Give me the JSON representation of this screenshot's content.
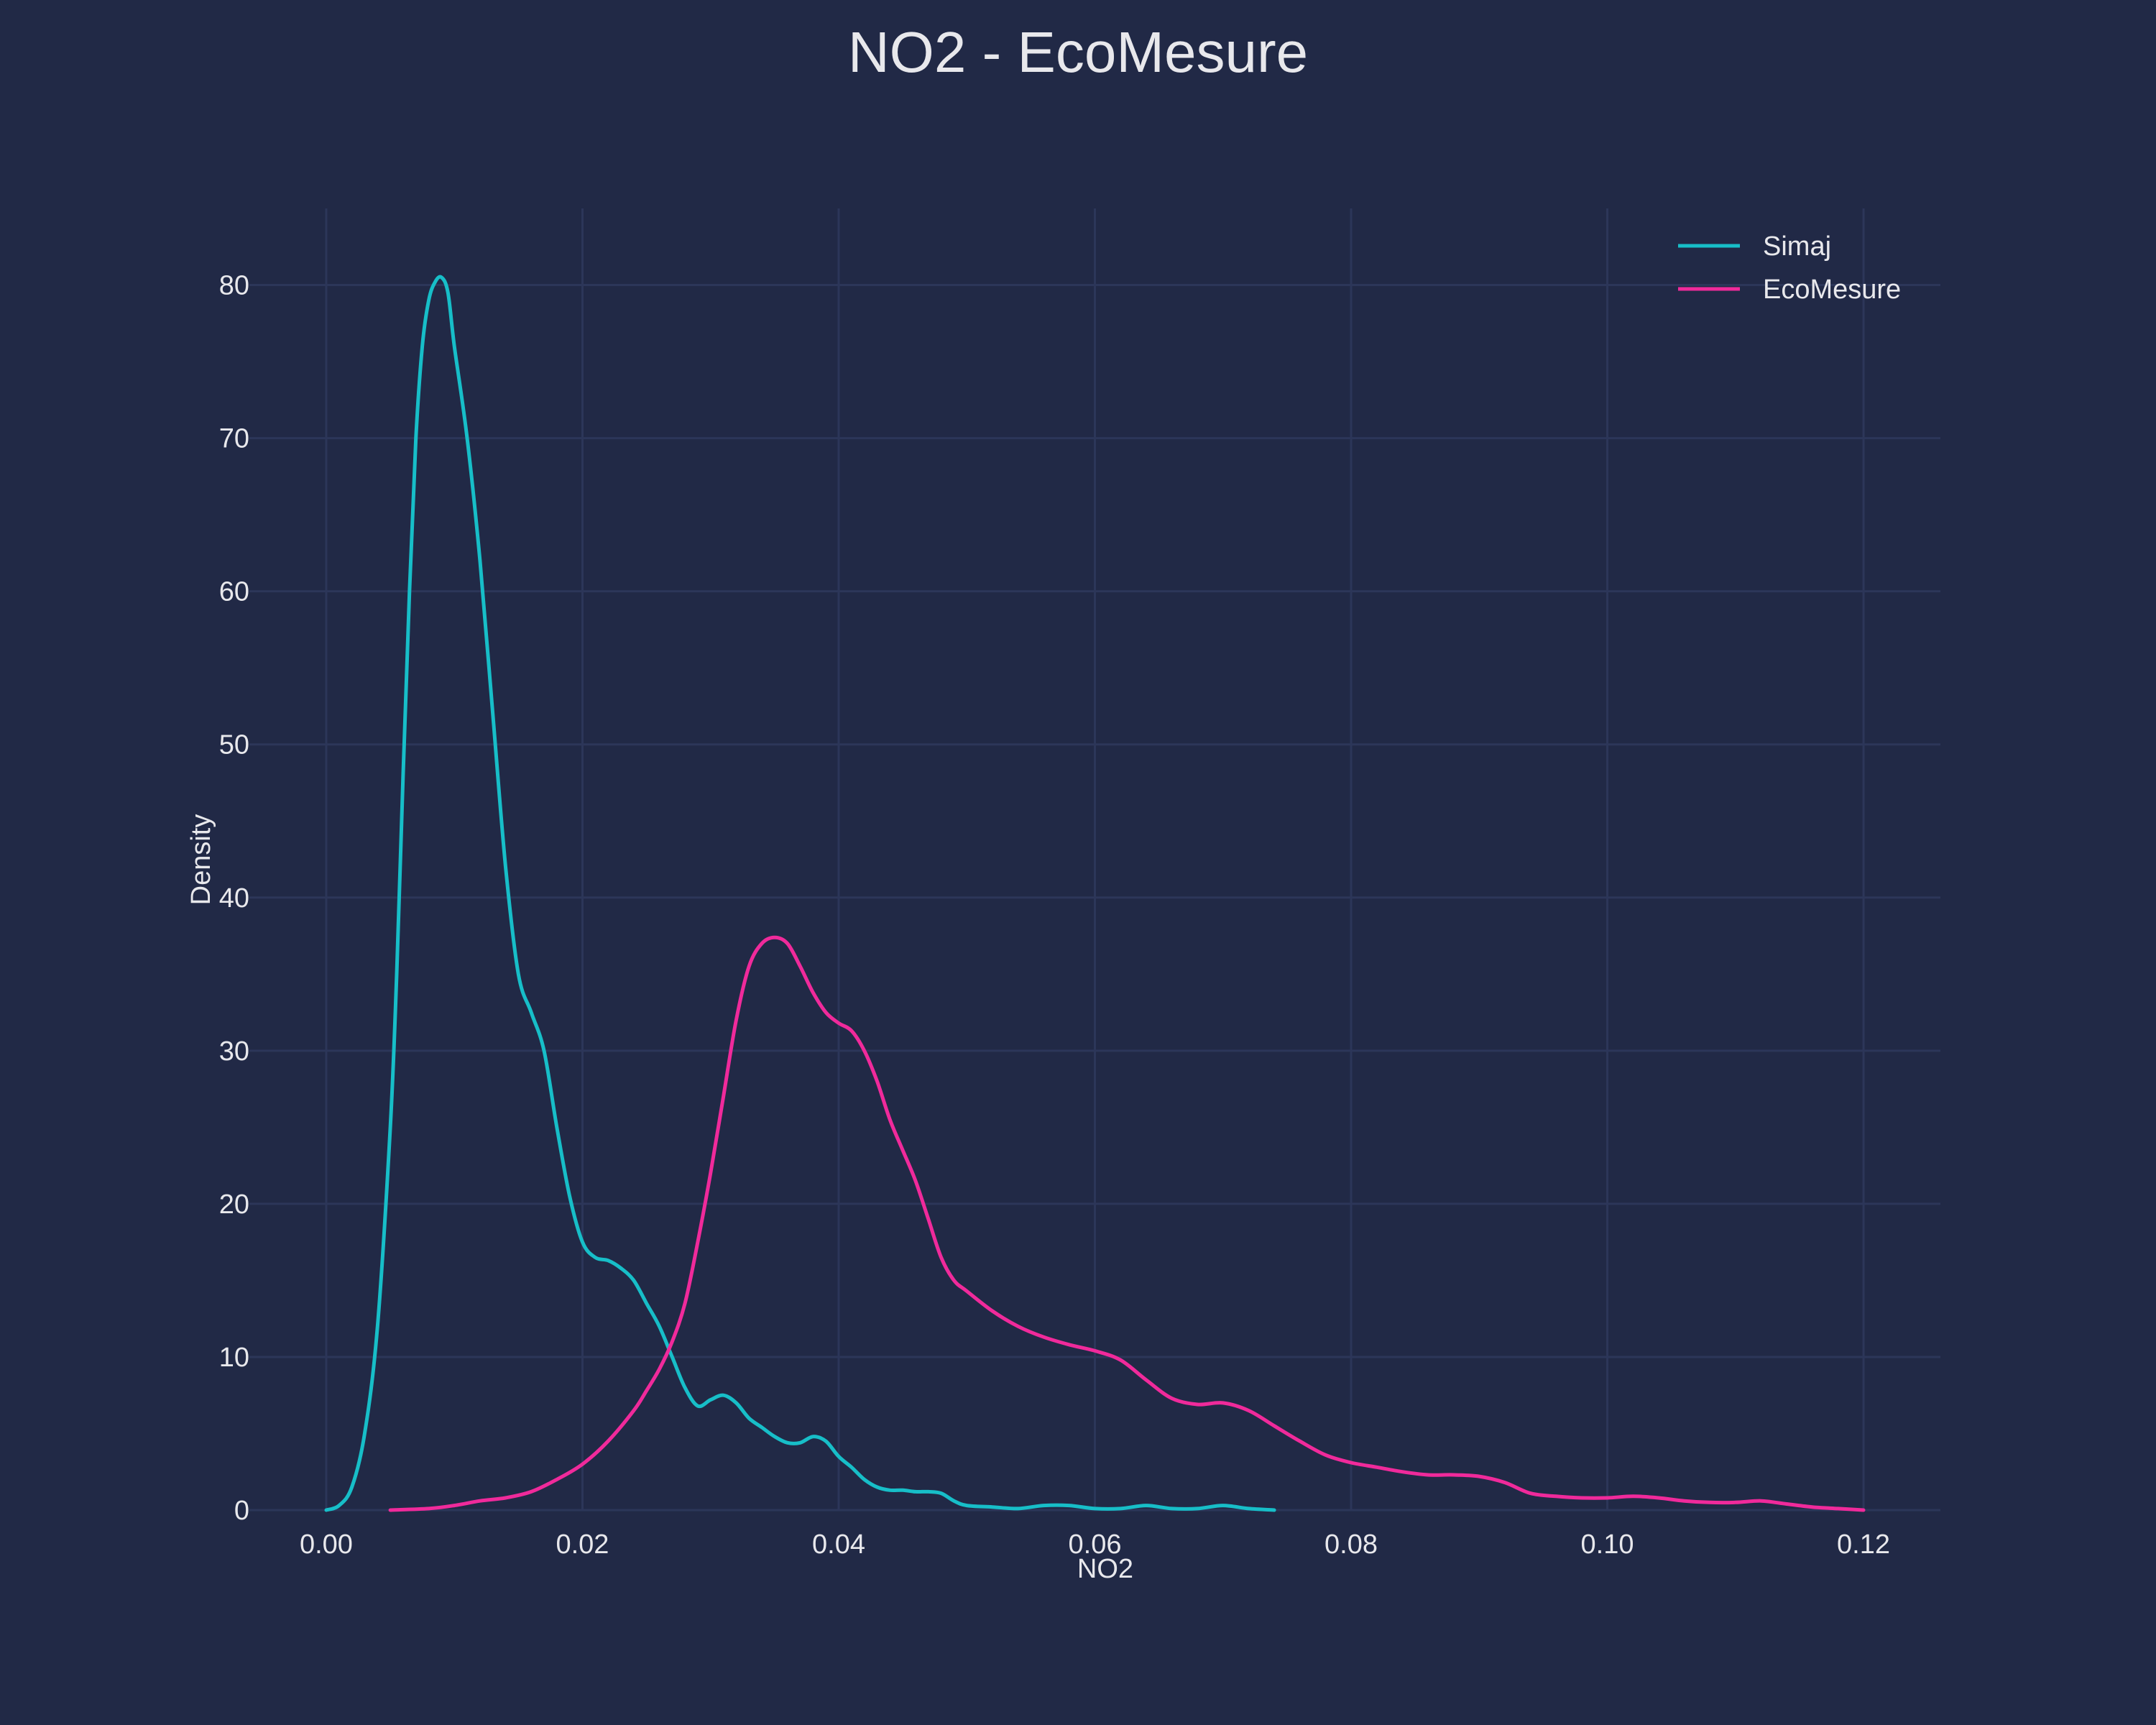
{
  "chart_data": {
    "type": "line",
    "title": "NO2 - EcoMesure",
    "xlabel": "NO2",
    "ylabel": "Density",
    "xlim": [
      -0.006,
      0.126
    ],
    "ylim": [
      0,
      85
    ],
    "x_ticks": [
      0.0,
      0.02,
      0.04,
      0.06,
      0.08,
      0.1,
      0.12
    ],
    "x_tick_labels": [
      "0.00",
      "0.02",
      "0.04",
      "0.06",
      "0.08",
      "0.10",
      "0.12"
    ],
    "y_ticks": [
      0,
      10,
      20,
      30,
      40,
      50,
      60,
      70,
      80
    ],
    "y_tick_labels": [
      "0",
      "10",
      "20",
      "30",
      "40",
      "50",
      "60",
      "70",
      "80"
    ],
    "grid": true,
    "legend_position": "top-right",
    "series": [
      {
        "name": "Simaj",
        "color": "#17bec8",
        "points": [
          [
            0.0,
            0.0
          ],
          [
            0.001,
            0.3
          ],
          [
            0.002,
            1.5
          ],
          [
            0.003,
            5.0
          ],
          [
            0.004,
            12.0
          ],
          [
            0.005,
            25.0
          ],
          [
            0.0055,
            35.0
          ],
          [
            0.006,
            48.0
          ],
          [
            0.0065,
            60.0
          ],
          [
            0.007,
            70.0
          ],
          [
            0.0075,
            76.0
          ],
          [
            0.008,
            79.0
          ],
          [
            0.0085,
            80.2
          ],
          [
            0.009,
            80.5
          ],
          [
            0.0095,
            79.5
          ],
          [
            0.01,
            76.0
          ],
          [
            0.011,
            70.0
          ],
          [
            0.012,
            62.0
          ],
          [
            0.013,
            52.0
          ],
          [
            0.014,
            42.0
          ],
          [
            0.015,
            35.0
          ],
          [
            0.016,
            32.5
          ],
          [
            0.017,
            30.0
          ],
          [
            0.018,
            25.0
          ],
          [
            0.019,
            20.5
          ],
          [
            0.02,
            17.5
          ],
          [
            0.021,
            16.5
          ],
          [
            0.022,
            16.3
          ],
          [
            0.023,
            15.8
          ],
          [
            0.024,
            15.0
          ],
          [
            0.025,
            13.5
          ],
          [
            0.026,
            12.0
          ],
          [
            0.027,
            10.0
          ],
          [
            0.028,
            8.0
          ],
          [
            0.029,
            6.8
          ],
          [
            0.03,
            7.2
          ],
          [
            0.031,
            7.5
          ],
          [
            0.032,
            7.0
          ],
          [
            0.033,
            6.0
          ],
          [
            0.034,
            5.4
          ],
          [
            0.035,
            4.8
          ],
          [
            0.036,
            4.4
          ],
          [
            0.037,
            4.4
          ],
          [
            0.038,
            4.8
          ],
          [
            0.039,
            4.5
          ],
          [
            0.04,
            3.5
          ],
          [
            0.041,
            2.8
          ],
          [
            0.042,
            2.0
          ],
          [
            0.043,
            1.5
          ],
          [
            0.044,
            1.3
          ],
          [
            0.045,
            1.3
          ],
          [
            0.046,
            1.2
          ],
          [
            0.047,
            1.2
          ],
          [
            0.048,
            1.1
          ],
          [
            0.049,
            0.6
          ],
          [
            0.05,
            0.3
          ],
          [
            0.052,
            0.2
          ],
          [
            0.054,
            0.1
          ],
          [
            0.056,
            0.3
          ],
          [
            0.058,
            0.3
          ],
          [
            0.06,
            0.1
          ],
          [
            0.062,
            0.1
          ],
          [
            0.064,
            0.3
          ],
          [
            0.066,
            0.1
          ],
          [
            0.068,
            0.1
          ],
          [
            0.07,
            0.3
          ],
          [
            0.072,
            0.1
          ],
          [
            0.074,
            0.0
          ]
        ]
      },
      {
        "name": "EcoMesure",
        "color": "#f02a9b",
        "points": [
          [
            0.005,
            0.0
          ],
          [
            0.008,
            0.1
          ],
          [
            0.01,
            0.3
          ],
          [
            0.012,
            0.6
          ],
          [
            0.014,
            0.8
          ],
          [
            0.016,
            1.2
          ],
          [
            0.018,
            2.0
          ],
          [
            0.02,
            3.0
          ],
          [
            0.022,
            4.5
          ],
          [
            0.024,
            6.5
          ],
          [
            0.025,
            7.8
          ],
          [
            0.026,
            9.2
          ],
          [
            0.027,
            11.0
          ],
          [
            0.028,
            13.5
          ],
          [
            0.029,
            17.5
          ],
          [
            0.03,
            22.0
          ],
          [
            0.031,
            27.0
          ],
          [
            0.032,
            32.0
          ],
          [
            0.033,
            35.5
          ],
          [
            0.034,
            37.0
          ],
          [
            0.035,
            37.4
          ],
          [
            0.036,
            37.0
          ],
          [
            0.037,
            35.5
          ],
          [
            0.038,
            33.8
          ],
          [
            0.039,
            32.5
          ],
          [
            0.04,
            31.8
          ],
          [
            0.041,
            31.3
          ],
          [
            0.042,
            30.0
          ],
          [
            0.043,
            28.0
          ],
          [
            0.044,
            25.5
          ],
          [
            0.045,
            23.5
          ],
          [
            0.046,
            21.5
          ],
          [
            0.047,
            19.0
          ],
          [
            0.048,
            16.5
          ],
          [
            0.049,
            15.0
          ],
          [
            0.05,
            14.3
          ],
          [
            0.052,
            13.0
          ],
          [
            0.054,
            12.0
          ],
          [
            0.056,
            11.3
          ],
          [
            0.058,
            10.8
          ],
          [
            0.06,
            10.4
          ],
          [
            0.062,
            9.8
          ],
          [
            0.064,
            8.5
          ],
          [
            0.066,
            7.3
          ],
          [
            0.068,
            6.9
          ],
          [
            0.07,
            7.0
          ],
          [
            0.072,
            6.5
          ],
          [
            0.074,
            5.5
          ],
          [
            0.076,
            4.5
          ],
          [
            0.078,
            3.6
          ],
          [
            0.08,
            3.1
          ],
          [
            0.082,
            2.8
          ],
          [
            0.084,
            2.5
          ],
          [
            0.086,
            2.3
          ],
          [
            0.088,
            2.3
          ],
          [
            0.09,
            2.2
          ],
          [
            0.092,
            1.8
          ],
          [
            0.094,
            1.1
          ],
          [
            0.096,
            0.9
          ],
          [
            0.098,
            0.8
          ],
          [
            0.1,
            0.8
          ],
          [
            0.102,
            0.9
          ],
          [
            0.104,
            0.8
          ],
          [
            0.106,
            0.6
          ],
          [
            0.108,
            0.5
          ],
          [
            0.11,
            0.5
          ],
          [
            0.112,
            0.6
          ],
          [
            0.114,
            0.4
          ],
          [
            0.116,
            0.2
          ],
          [
            0.118,
            0.1
          ],
          [
            0.12,
            0.0
          ]
        ]
      }
    ]
  }
}
